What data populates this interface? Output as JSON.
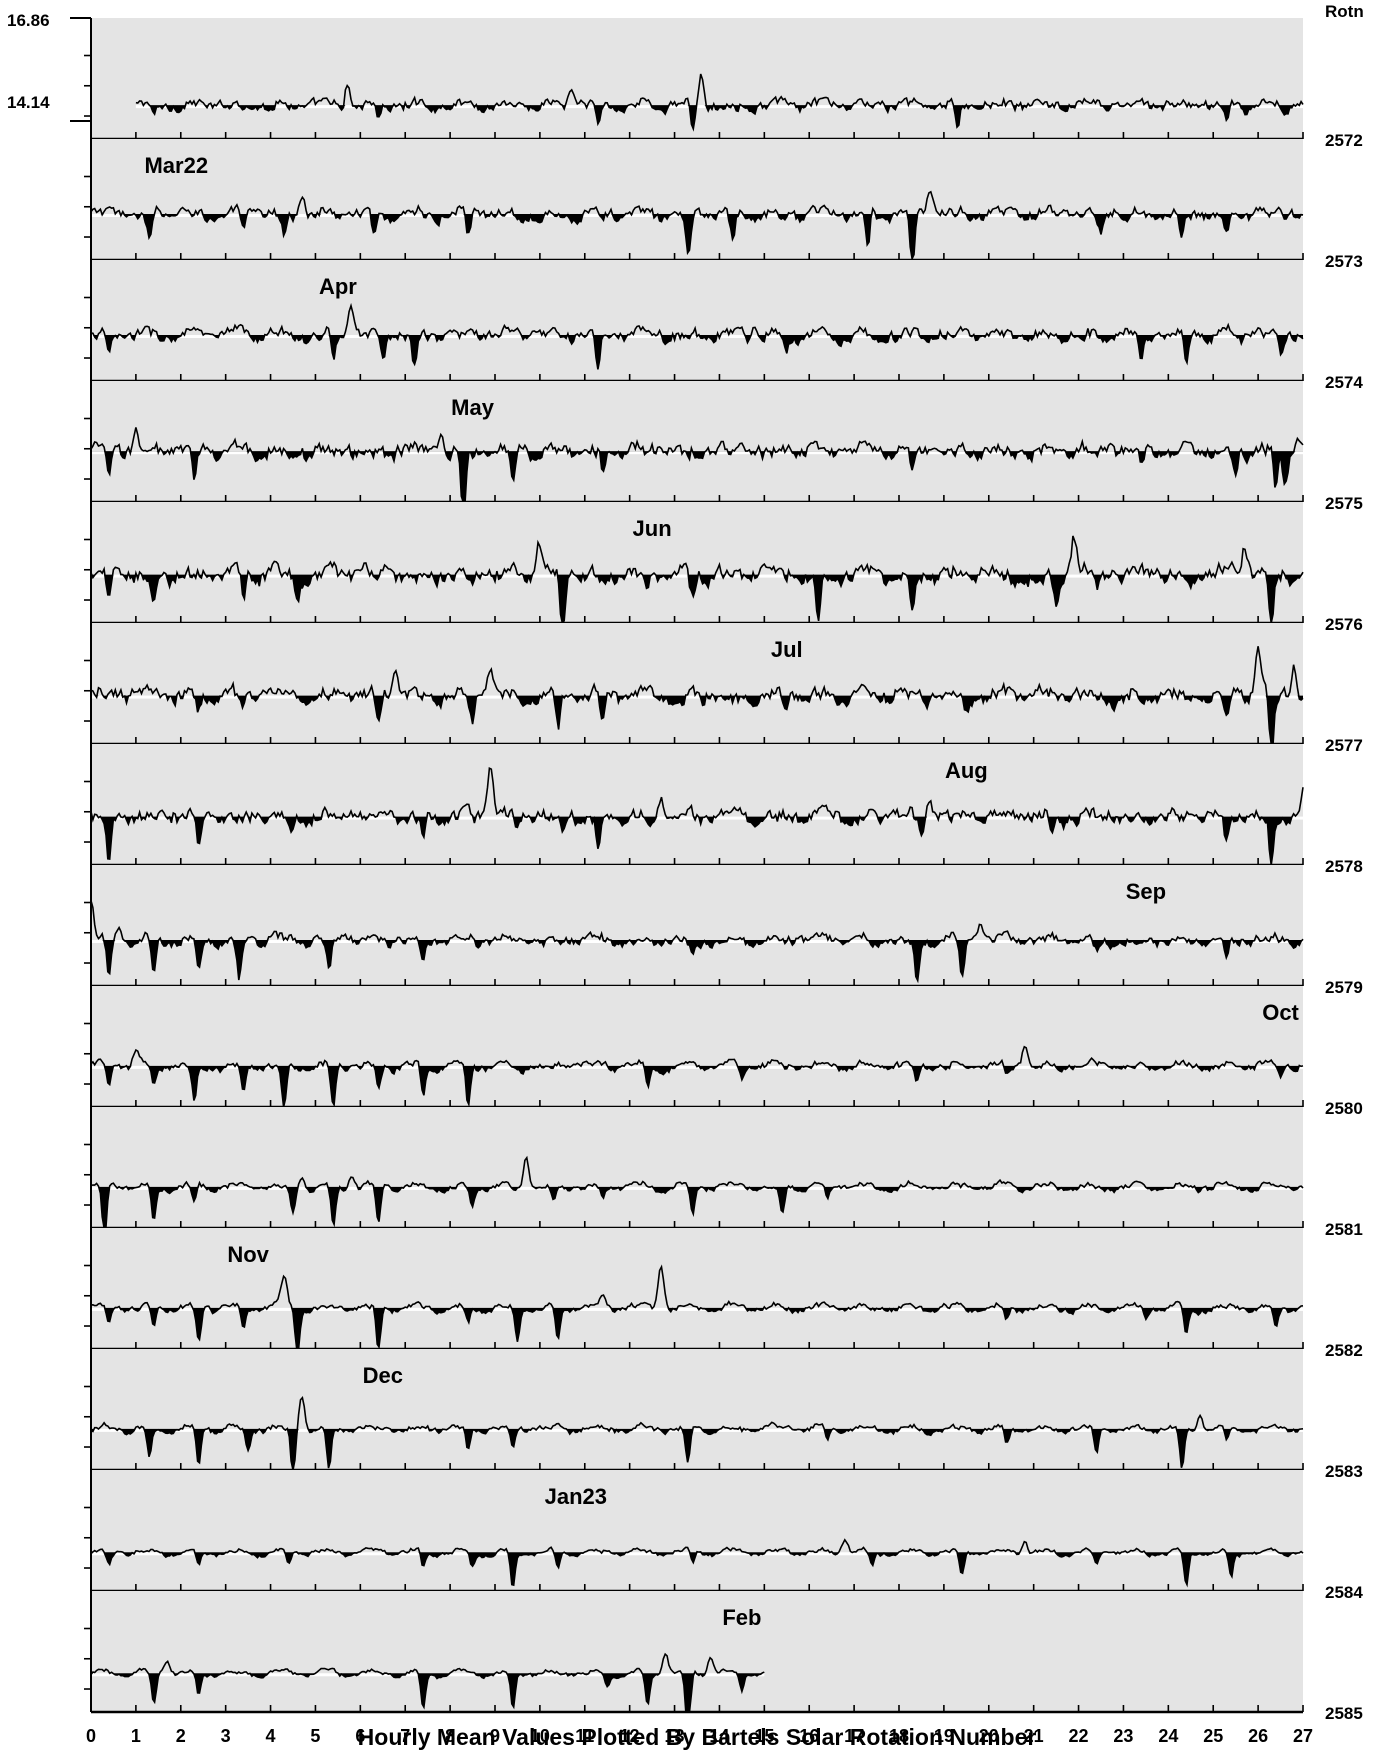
{
  "chart_data": {
    "type": "line",
    "title": "",
    "xlabel": "Hourly Mean Values Plotted By Bartels Solar Rotation Number",
    "ylabel": "",
    "right_axis_title": "Rotn",
    "y_scale_labels": [
      "16.86",
      "14.14"
    ],
    "xlim": [
      0,
      27
    ],
    "x_ticks": [
      "0",
      "1",
      "2",
      "3",
      "4",
      "5",
      "6",
      "7",
      "8",
      "9",
      "10",
      "11",
      "12",
      "13",
      "14",
      "15",
      "16",
      "17",
      "18",
      "19",
      "20",
      "21",
      "22",
      "23",
      "24",
      "25",
      "26",
      "27"
    ],
    "fill_below_baseline": true,
    "grid": false,
    "panel_background": "#e4e4e4",
    "line_color": "#000000",
    "rows": [
      {
        "rotation": "2572",
        "x_start": 1.0,
        "x_end": 27,
        "month_label": "",
        "month_x": 0,
        "level": 0.28,
        "noise": 0.07,
        "dips": [
          [
            1.4,
            0.12
          ],
          [
            5.6,
            0.12
          ],
          [
            6.4,
            0.12
          ],
          [
            11.3,
            0.18
          ],
          [
            13.4,
            0.22
          ],
          [
            19.3,
            0.26
          ],
          [
            25.3,
            0.15
          ],
          [
            26.6,
            0.12
          ]
        ],
        "spikes": [
          [
            5.7,
            0.2
          ],
          [
            13.6,
            0.25
          ],
          [
            10.7,
            0.15
          ]
        ]
      },
      {
        "rotation": "2573",
        "x_start": 0,
        "x_end": 27,
        "month_label": "Mar22",
        "month_x": 1.9,
        "level": 0.38,
        "noise": 0.08,
        "dips": [
          [
            1.3,
            0.25
          ],
          [
            3.4,
            0.15
          ],
          [
            4.3,
            0.18
          ],
          [
            6.3,
            0.2
          ],
          [
            8.4,
            0.2
          ],
          [
            11.4,
            0.1
          ],
          [
            13.3,
            0.4
          ],
          [
            14.3,
            0.25
          ],
          [
            17.3,
            0.3
          ],
          [
            18.3,
            0.42
          ],
          [
            22.5,
            0.15
          ],
          [
            24.3,
            0.22
          ],
          [
            25.3,
            0.15
          ]
        ],
        "spikes": [
          [
            4.7,
            0.15
          ],
          [
            18.7,
            0.25
          ]
        ]
      },
      {
        "rotation": "2574",
        "x_start": 0,
        "x_end": 27,
        "month_label": "Apr",
        "month_x": 5.5,
        "level": 0.38,
        "noise": 0.08,
        "dips": [
          [
            0.4,
            0.2
          ],
          [
            5.4,
            0.2
          ],
          [
            6.5,
            0.15
          ],
          [
            7.2,
            0.3
          ],
          [
            11.3,
            0.3
          ],
          [
            23.4,
            0.22
          ],
          [
            24.4,
            0.22
          ],
          [
            26.5,
            0.15
          ],
          [
            15.5,
            0.1
          ]
        ],
        "spikes": [
          [
            5.8,
            0.25
          ],
          [
            14.8,
            0.1
          ]
        ]
      },
      {
        "rotation": "2575",
        "x_start": 0,
        "x_end": 27,
        "month_label": "May",
        "month_x": 8.5,
        "level": 0.42,
        "noise": 0.1,
        "dips": [
          [
            0.4,
            0.25
          ],
          [
            2.3,
            0.25
          ],
          [
            8.3,
            0.55
          ],
          [
            9.4,
            0.3
          ],
          [
            11.4,
            0.2
          ],
          [
            18.3,
            0.2
          ],
          [
            23.4,
            0.15
          ],
          [
            25.5,
            0.2
          ],
          [
            26.4,
            0.3
          ],
          [
            26.6,
            0.25
          ]
        ],
        "spikes": [
          [
            1.0,
            0.15
          ],
          [
            7.8,
            0.2
          ],
          [
            26.9,
            0.15
          ]
        ]
      },
      {
        "rotation": "2576",
        "x_start": 0,
        "x_end": 27,
        "month_label": "Jun",
        "month_x": 12.5,
        "level": 0.4,
        "noise": 0.11,
        "dips": [
          [
            0.4,
            0.25
          ],
          [
            1.4,
            0.25
          ],
          [
            3.4,
            0.25
          ],
          [
            4.6,
            0.2
          ],
          [
            10.5,
            0.5
          ],
          [
            12.4,
            0.2
          ],
          [
            13.4,
            0.2
          ],
          [
            16.2,
            0.45
          ],
          [
            18.3,
            0.35
          ],
          [
            21.5,
            0.25
          ],
          [
            26.3,
            0.45
          ],
          [
            22.4,
            0.15
          ]
        ],
        "spikes": [
          [
            10.0,
            0.25
          ],
          [
            21.9,
            0.32
          ],
          [
            25.7,
            0.28
          ]
        ]
      },
      {
        "rotation": "2577",
        "x_start": 0,
        "x_end": 27,
        "month_label": "Jul",
        "month_x": 15.5,
        "level": 0.4,
        "noise": 0.1,
        "dips": [
          [
            2.4,
            0.15
          ],
          [
            3.4,
            0.12
          ],
          [
            6.4,
            0.3
          ],
          [
            8.5,
            0.2
          ],
          [
            10.4,
            0.3
          ],
          [
            11.4,
            0.25
          ],
          [
            15.5,
            0.1
          ],
          [
            19.5,
            0.15
          ],
          [
            25.3,
            0.2
          ],
          [
            26.3,
            0.5
          ]
        ],
        "spikes": [
          [
            6.8,
            0.2
          ],
          [
            8.9,
            0.2
          ],
          [
            26.0,
            0.35
          ],
          [
            26.8,
            0.25
          ]
        ]
      },
      {
        "rotation": "2578",
        "x_start": 0,
        "x_end": 27,
        "month_label": "Aug",
        "month_x": 19.5,
        "level": 0.4,
        "noise": 0.1,
        "dips": [
          [
            0.4,
            0.45
          ],
          [
            1.4,
            0.1
          ],
          [
            2.4,
            0.25
          ],
          [
            4.5,
            0.12
          ],
          [
            7.4,
            0.15
          ],
          [
            9.5,
            0.12
          ],
          [
            10.5,
            0.15
          ],
          [
            11.3,
            0.25
          ],
          [
            18.5,
            0.15
          ],
          [
            21.4,
            0.2
          ],
          [
            25.3,
            0.25
          ],
          [
            26.3,
            0.45
          ]
        ],
        "spikes": [
          [
            8.9,
            0.45
          ],
          [
            18.7,
            0.15
          ],
          [
            12.7,
            0.15
          ],
          [
            27.0,
            0.2
          ]
        ]
      },
      {
        "rotation": "2579",
        "x_start": 0,
        "x_end": 27,
        "month_label": "Sep",
        "month_x": 23.5,
        "level": 0.38,
        "noise": 0.07,
        "dips": [
          [
            0.4,
            0.35
          ],
          [
            1.4,
            0.3
          ],
          [
            2.4,
            0.25
          ],
          [
            3.3,
            0.35
          ],
          [
            5.3,
            0.25
          ],
          [
            7.4,
            0.2
          ],
          [
            13.4,
            0.15
          ],
          [
            18.4,
            0.35
          ],
          [
            19.4,
            0.3
          ],
          [
            25.3,
            0.2
          ],
          [
            22.4,
            0.1
          ]
        ],
        "spikes": [
          [
            0.0,
            0.3
          ],
          [
            0.6,
            0.12
          ],
          [
            19.8,
            0.15
          ]
        ]
      },
      {
        "rotation": "2580",
        "x_start": 0,
        "x_end": 27,
        "month_label": "Oct",
        "month_x": 26.5,
        "level": 0.34,
        "noise": 0.05,
        "dips": [
          [
            0.4,
            0.2
          ],
          [
            1.4,
            0.2
          ],
          [
            2.3,
            0.3
          ],
          [
            3.4,
            0.2
          ],
          [
            4.3,
            0.4
          ],
          [
            5.4,
            0.35
          ],
          [
            6.4,
            0.2
          ],
          [
            7.4,
            0.25
          ],
          [
            8.4,
            0.35
          ],
          [
            12.4,
            0.2
          ],
          [
            14.5,
            0.12
          ],
          [
            18.4,
            0.15
          ],
          [
            20.4,
            0.12
          ],
          [
            26.5,
            0.1
          ]
        ],
        "spikes": [
          [
            1.0,
            0.15
          ],
          [
            20.8,
            0.18
          ]
        ]
      },
      {
        "rotation": "2581",
        "x_start": 0,
        "x_end": 27,
        "month_label": "",
        "month_x": 0,
        "level": 0.34,
        "noise": 0.04,
        "dips": [
          [
            0.3,
            0.45
          ],
          [
            1.4,
            0.3
          ],
          [
            2.3,
            0.15
          ],
          [
            4.5,
            0.2
          ],
          [
            5.4,
            0.35
          ],
          [
            6.4,
            0.3
          ],
          [
            8.5,
            0.15
          ],
          [
            10.3,
            0.15
          ],
          [
            11.4,
            0.1
          ],
          [
            13.4,
            0.25
          ],
          [
            15.4,
            0.25
          ],
          [
            16.4,
            0.12
          ]
        ],
        "spikes": [
          [
            9.7,
            0.25
          ],
          [
            4.7,
            0.12
          ],
          [
            5.8,
            0.1
          ]
        ]
      },
      {
        "rotation": "2582",
        "x_start": 0,
        "x_end": 27,
        "month_label": "Nov",
        "month_x": 3.5,
        "level": 0.34,
        "noise": 0.04,
        "dips": [
          [
            0.4,
            0.15
          ],
          [
            1.4,
            0.2
          ],
          [
            2.4,
            0.3
          ],
          [
            3.4,
            0.2
          ],
          [
            4.6,
            0.4
          ],
          [
            6.4,
            0.35
          ],
          [
            9.5,
            0.3
          ],
          [
            10.4,
            0.25
          ],
          [
            20.4,
            0.12
          ],
          [
            23.5,
            0.1
          ],
          [
            24.4,
            0.25
          ],
          [
            26.4,
            0.15
          ],
          [
            8.4,
            0.12
          ]
        ],
        "spikes": [
          [
            4.3,
            0.25
          ],
          [
            12.7,
            0.35
          ],
          [
            11.4,
            0.08
          ]
        ]
      },
      {
        "rotation": "2583",
        "x_start": 0,
        "x_end": 27,
        "month_label": "Dec",
        "month_x": 6.5,
        "level": 0.34,
        "noise": 0.04,
        "dips": [
          [
            1.3,
            0.25
          ],
          [
            2.4,
            0.3
          ],
          [
            3.5,
            0.2
          ],
          [
            4.5,
            0.4
          ],
          [
            5.3,
            0.35
          ],
          [
            8.4,
            0.2
          ],
          [
            9.4,
            0.15
          ],
          [
            13.3,
            0.3
          ],
          [
            16.4,
            0.1
          ],
          [
            20.4,
            0.15
          ],
          [
            22.4,
            0.2
          ],
          [
            24.3,
            0.35
          ],
          [
            25.3,
            0.12
          ]
        ],
        "spikes": [
          [
            4.7,
            0.28
          ],
          [
            24.7,
            0.12
          ]
        ]
      },
      {
        "rotation": "2584",
        "x_start": 0,
        "x_end": 27,
        "month_label": "Jan23",
        "month_x": 10.8,
        "level": 0.32,
        "noise": 0.03,
        "dips": [
          [
            0.4,
            0.1
          ],
          [
            2.4,
            0.1
          ],
          [
            4.4,
            0.12
          ],
          [
            7.4,
            0.15
          ],
          [
            8.5,
            0.12
          ],
          [
            9.4,
            0.3
          ],
          [
            10.4,
            0.15
          ],
          [
            13.4,
            0.1
          ],
          [
            17.4,
            0.12
          ],
          [
            19.4,
            0.2
          ],
          [
            22.4,
            0.12
          ],
          [
            24.4,
            0.3
          ],
          [
            25.4,
            0.2
          ]
        ],
        "spikes": [
          [
            16.8,
            0.12
          ],
          [
            20.8,
            0.1
          ]
        ]
      },
      {
        "rotation": "2585",
        "x_start": 0,
        "x_end": 15.0,
        "month_label": "Feb",
        "month_x": 14.5,
        "level": 0.32,
        "noise": 0.03,
        "dips": [
          [
            1.4,
            0.25
          ],
          [
            2.4,
            0.2
          ],
          [
            7.4,
            0.3
          ],
          [
            9.4,
            0.3
          ],
          [
            12.4,
            0.3
          ],
          [
            13.3,
            0.6
          ],
          [
            14.5,
            0.15
          ],
          [
            11.5,
            0.12
          ]
        ],
        "spikes": [
          [
            1.7,
            0.1
          ],
          [
            12.8,
            0.18
          ],
          [
            13.8,
            0.15
          ]
        ]
      }
    ]
  }
}
